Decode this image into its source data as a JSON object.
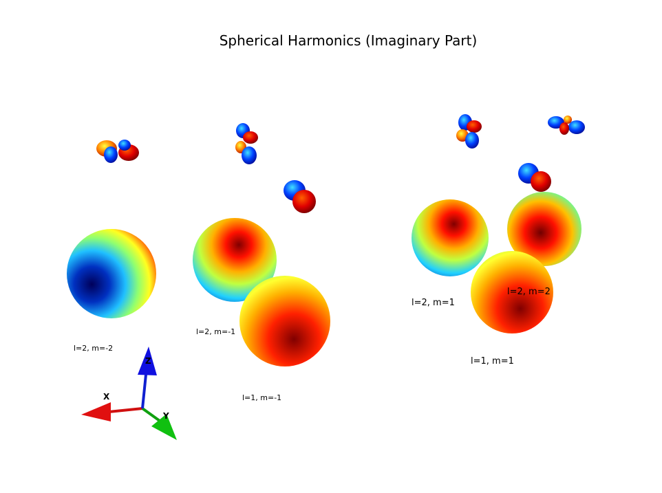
{
  "title": "Spherical Harmonics (Imaginary Part)",
  "labels": {
    "l2_mneg2": "l=2, m=-2",
    "l2_mneg1": "l=2, m=-1",
    "l1_mneg1": "l=1, m=-1",
    "l2_m1": "l=2, m=1",
    "l2_m2": "l=2, m=2",
    "l1_m1": "l=1, m=1"
  },
  "axes": {
    "x": "X",
    "y": "Y",
    "z": "Z"
  },
  "colors": {
    "x_axis": "#e01010",
    "y_axis": "#10c010",
    "z_axis": "#1010e0",
    "colormap": "jet"
  }
}
